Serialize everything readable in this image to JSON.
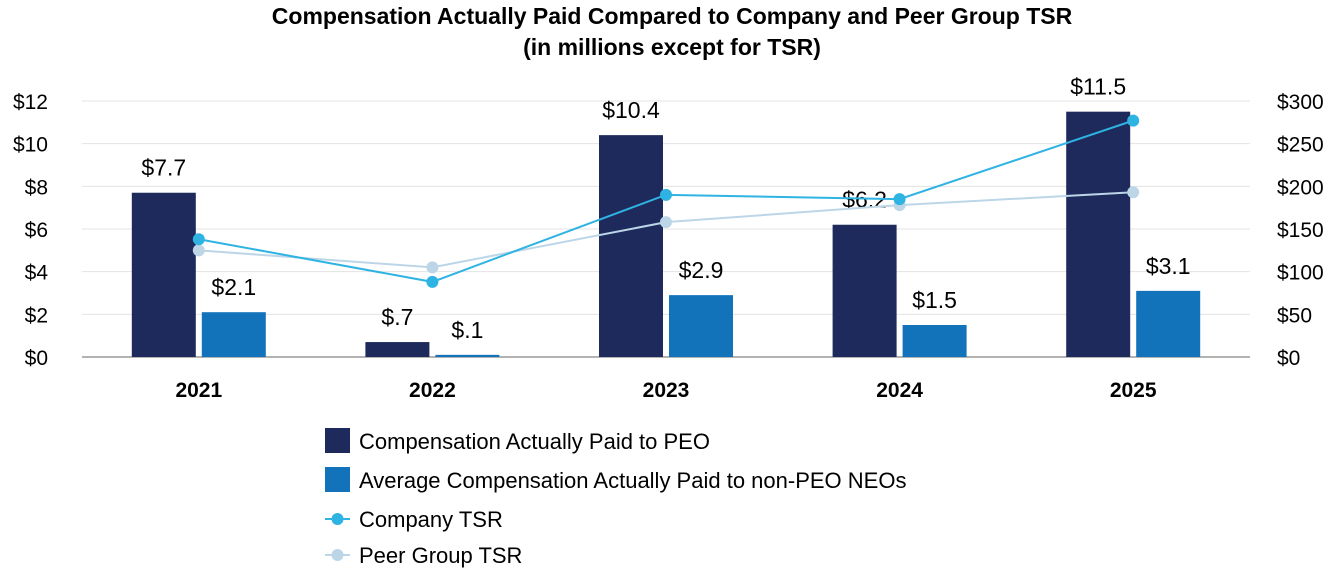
{
  "chart_data": {
    "type": "bar",
    "title": "Compensation Actually Paid Compared to Company and Peer Group TSR",
    "subtitle": "(in millions except for TSR)",
    "categories": [
      "2021",
      "2022",
      "2023",
      "2024",
      "2025"
    ],
    "y_left": {
      "range": [
        0,
        12
      ],
      "ticks": [
        0,
        2,
        4,
        6,
        8,
        10,
        12
      ],
      "tick_labels": [
        "$0",
        "$2",
        "$4",
        "$6",
        "$8",
        "$10",
        "$12"
      ]
    },
    "y_right": {
      "range": [
        0,
        300
      ],
      "ticks": [
        0,
        50,
        100,
        150,
        200,
        250,
        300
      ],
      "tick_labels": [
        "$0",
        "$50",
        "$100",
        "$150",
        "$200",
        "$250",
        "$300"
      ]
    },
    "grid": true,
    "legend_position": "bottom",
    "series": [
      {
        "name": "Compensation Actually Paid to PEO",
        "kind": "bar",
        "axis": "left",
        "color": "#1f2a5c",
        "values": [
          7.7,
          0.7,
          10.4,
          6.2,
          11.5
        ],
        "labels": [
          "$7.7",
          "$.7",
          "$10.4",
          "$6.2",
          "$11.5"
        ]
      },
      {
        "name": "Average Compensation Actually Paid to non-PEO NEOs",
        "kind": "bar",
        "axis": "left",
        "color": "#1273bb",
        "values": [
          2.1,
          0.1,
          2.9,
          1.5,
          3.1
        ],
        "labels": [
          "$2.1",
          "$.1",
          "$2.9",
          "$1.5",
          "$3.1"
        ]
      },
      {
        "name": "Company TSR",
        "kind": "line",
        "axis": "right",
        "color": "#2eb3e3",
        "values": [
          138,
          88,
          190,
          185,
          277
        ]
      },
      {
        "name": "Peer Group TSR",
        "kind": "line",
        "axis": "right",
        "color": "#bcd6e8",
        "values": [
          125,
          105,
          158,
          178,
          193
        ]
      }
    ]
  }
}
